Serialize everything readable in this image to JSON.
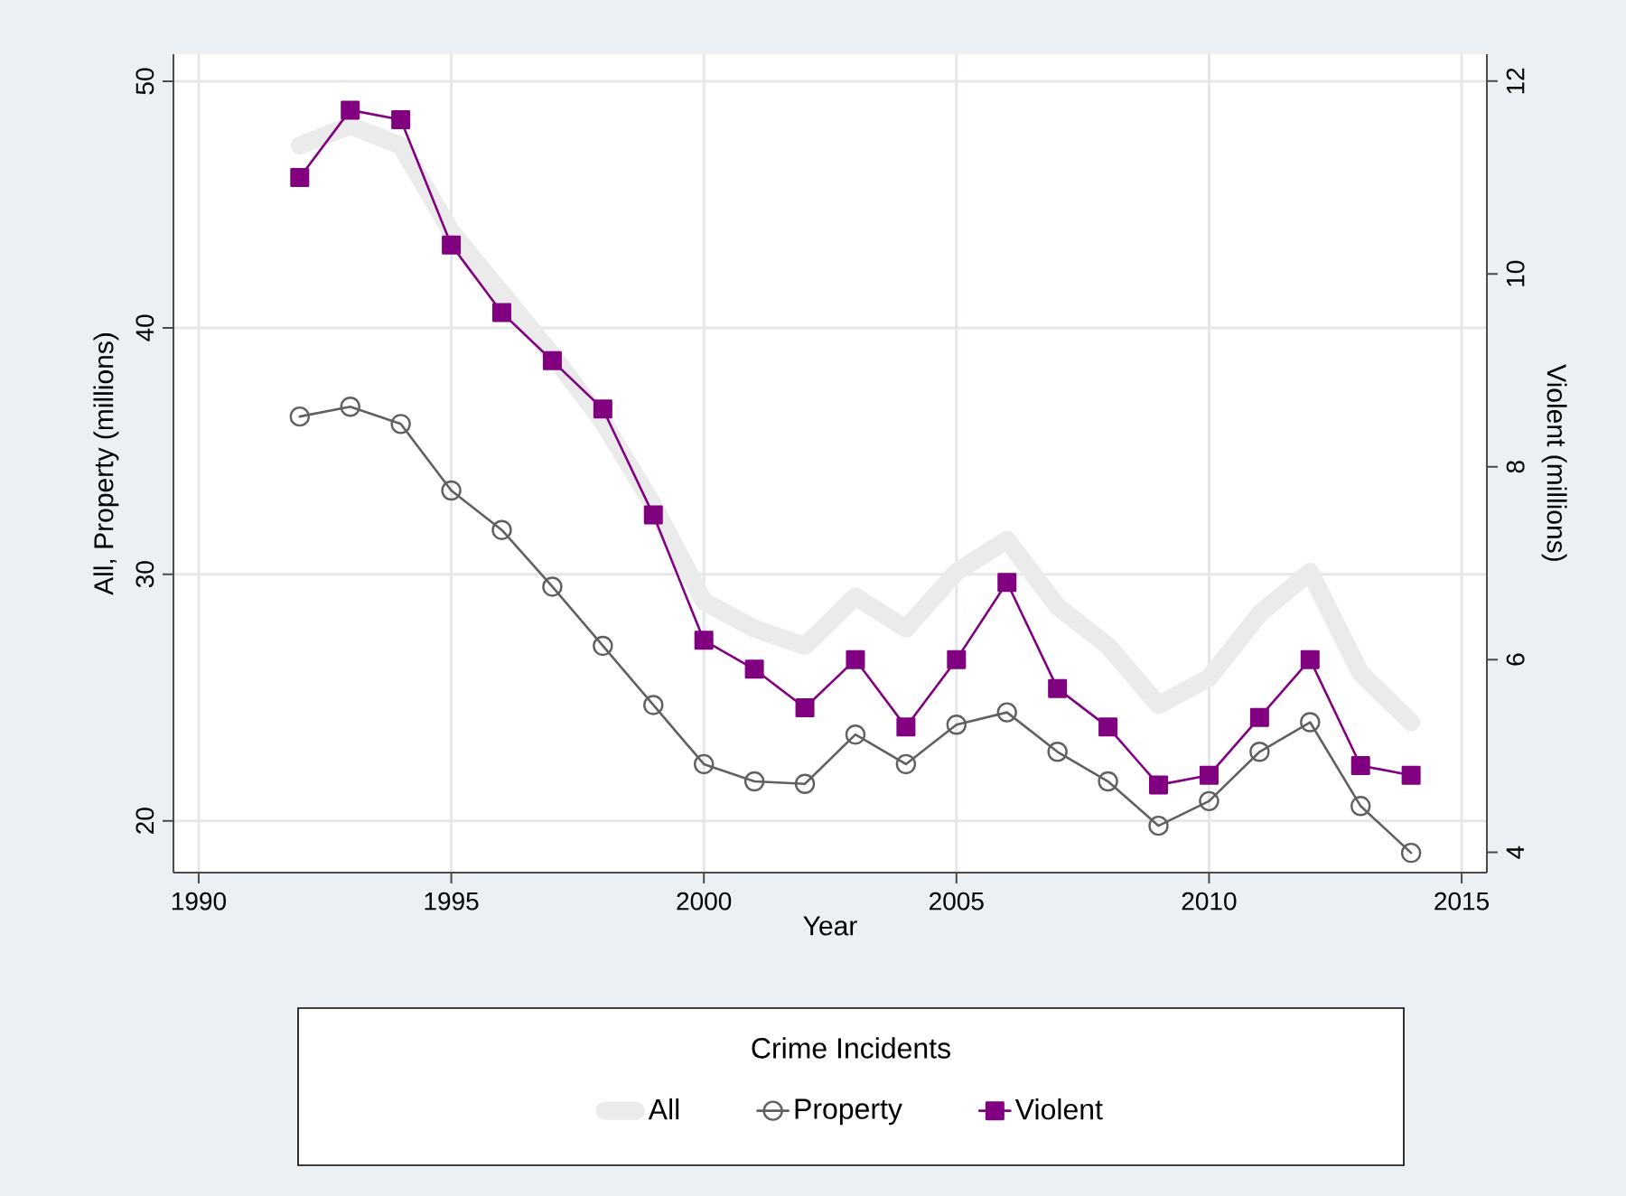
{
  "chart_data": {
    "type": "line",
    "xlabel": "Year",
    "ylabel": "All, Property (millions)",
    "y2label": "Violent (millions)",
    "legend_title": "Crime Incidents",
    "x": [
      1992,
      1993,
      1994,
      1995,
      1996,
      1997,
      1998,
      1999,
      2000,
      2001,
      2002,
      2003,
      2004,
      2005,
      2006,
      2007,
      2008,
      2009,
      2010,
      2011,
      2012,
      2013,
      2014
    ],
    "series": [
      {
        "name": "All",
        "color": "#ebebeb",
        "marker": "none",
        "values": [
          47.4,
          48.2,
          47.4,
          43.9,
          41.4,
          38.9,
          36.2,
          32.8,
          28.9,
          27.8,
          27.1,
          29.1,
          27.8,
          30.1,
          31.4,
          28.7,
          27.1,
          24.7,
          25.8,
          28.4,
          30.1,
          26.0,
          24.0
        ]
      },
      {
        "name": "Property",
        "color": "#606060",
        "marker": "circle",
        "values": [
          36.4,
          36.8,
          36.1,
          33.4,
          31.8,
          29.5,
          27.1,
          24.7,
          22.3,
          21.6,
          21.5,
          23.5,
          22.3,
          23.9,
          24.4,
          22.8,
          21.6,
          19.8,
          20.8,
          22.8,
          24.0,
          20.6,
          18.7
        ]
      },
      {
        "name": "Violent",
        "color": "#800080",
        "marker": "square",
        "axis": "y2",
        "values": [
          11.0,
          11.7,
          11.6,
          10.3,
          9.6,
          9.1,
          8.6,
          7.5,
          6.2,
          5.9,
          5.5,
          6.0,
          5.3,
          6.0,
          6.8,
          5.7,
          5.3,
          4.7,
          4.8,
          5.4,
          6.0,
          4.9,
          4.8
        ]
      }
    ],
    "xlim": [
      1989.5,
      2015.5
    ],
    "xticks": [
      1990,
      1995,
      2000,
      2005,
      2010,
      2015
    ],
    "ylim": [
      17.9,
      51.1
    ],
    "yticks": [
      20,
      30,
      40,
      50
    ],
    "y2lim": [
      3.79,
      12.28
    ],
    "y2ticks": [
      4,
      6,
      8,
      10,
      12
    ],
    "grid": true,
    "legend": "bottom"
  }
}
